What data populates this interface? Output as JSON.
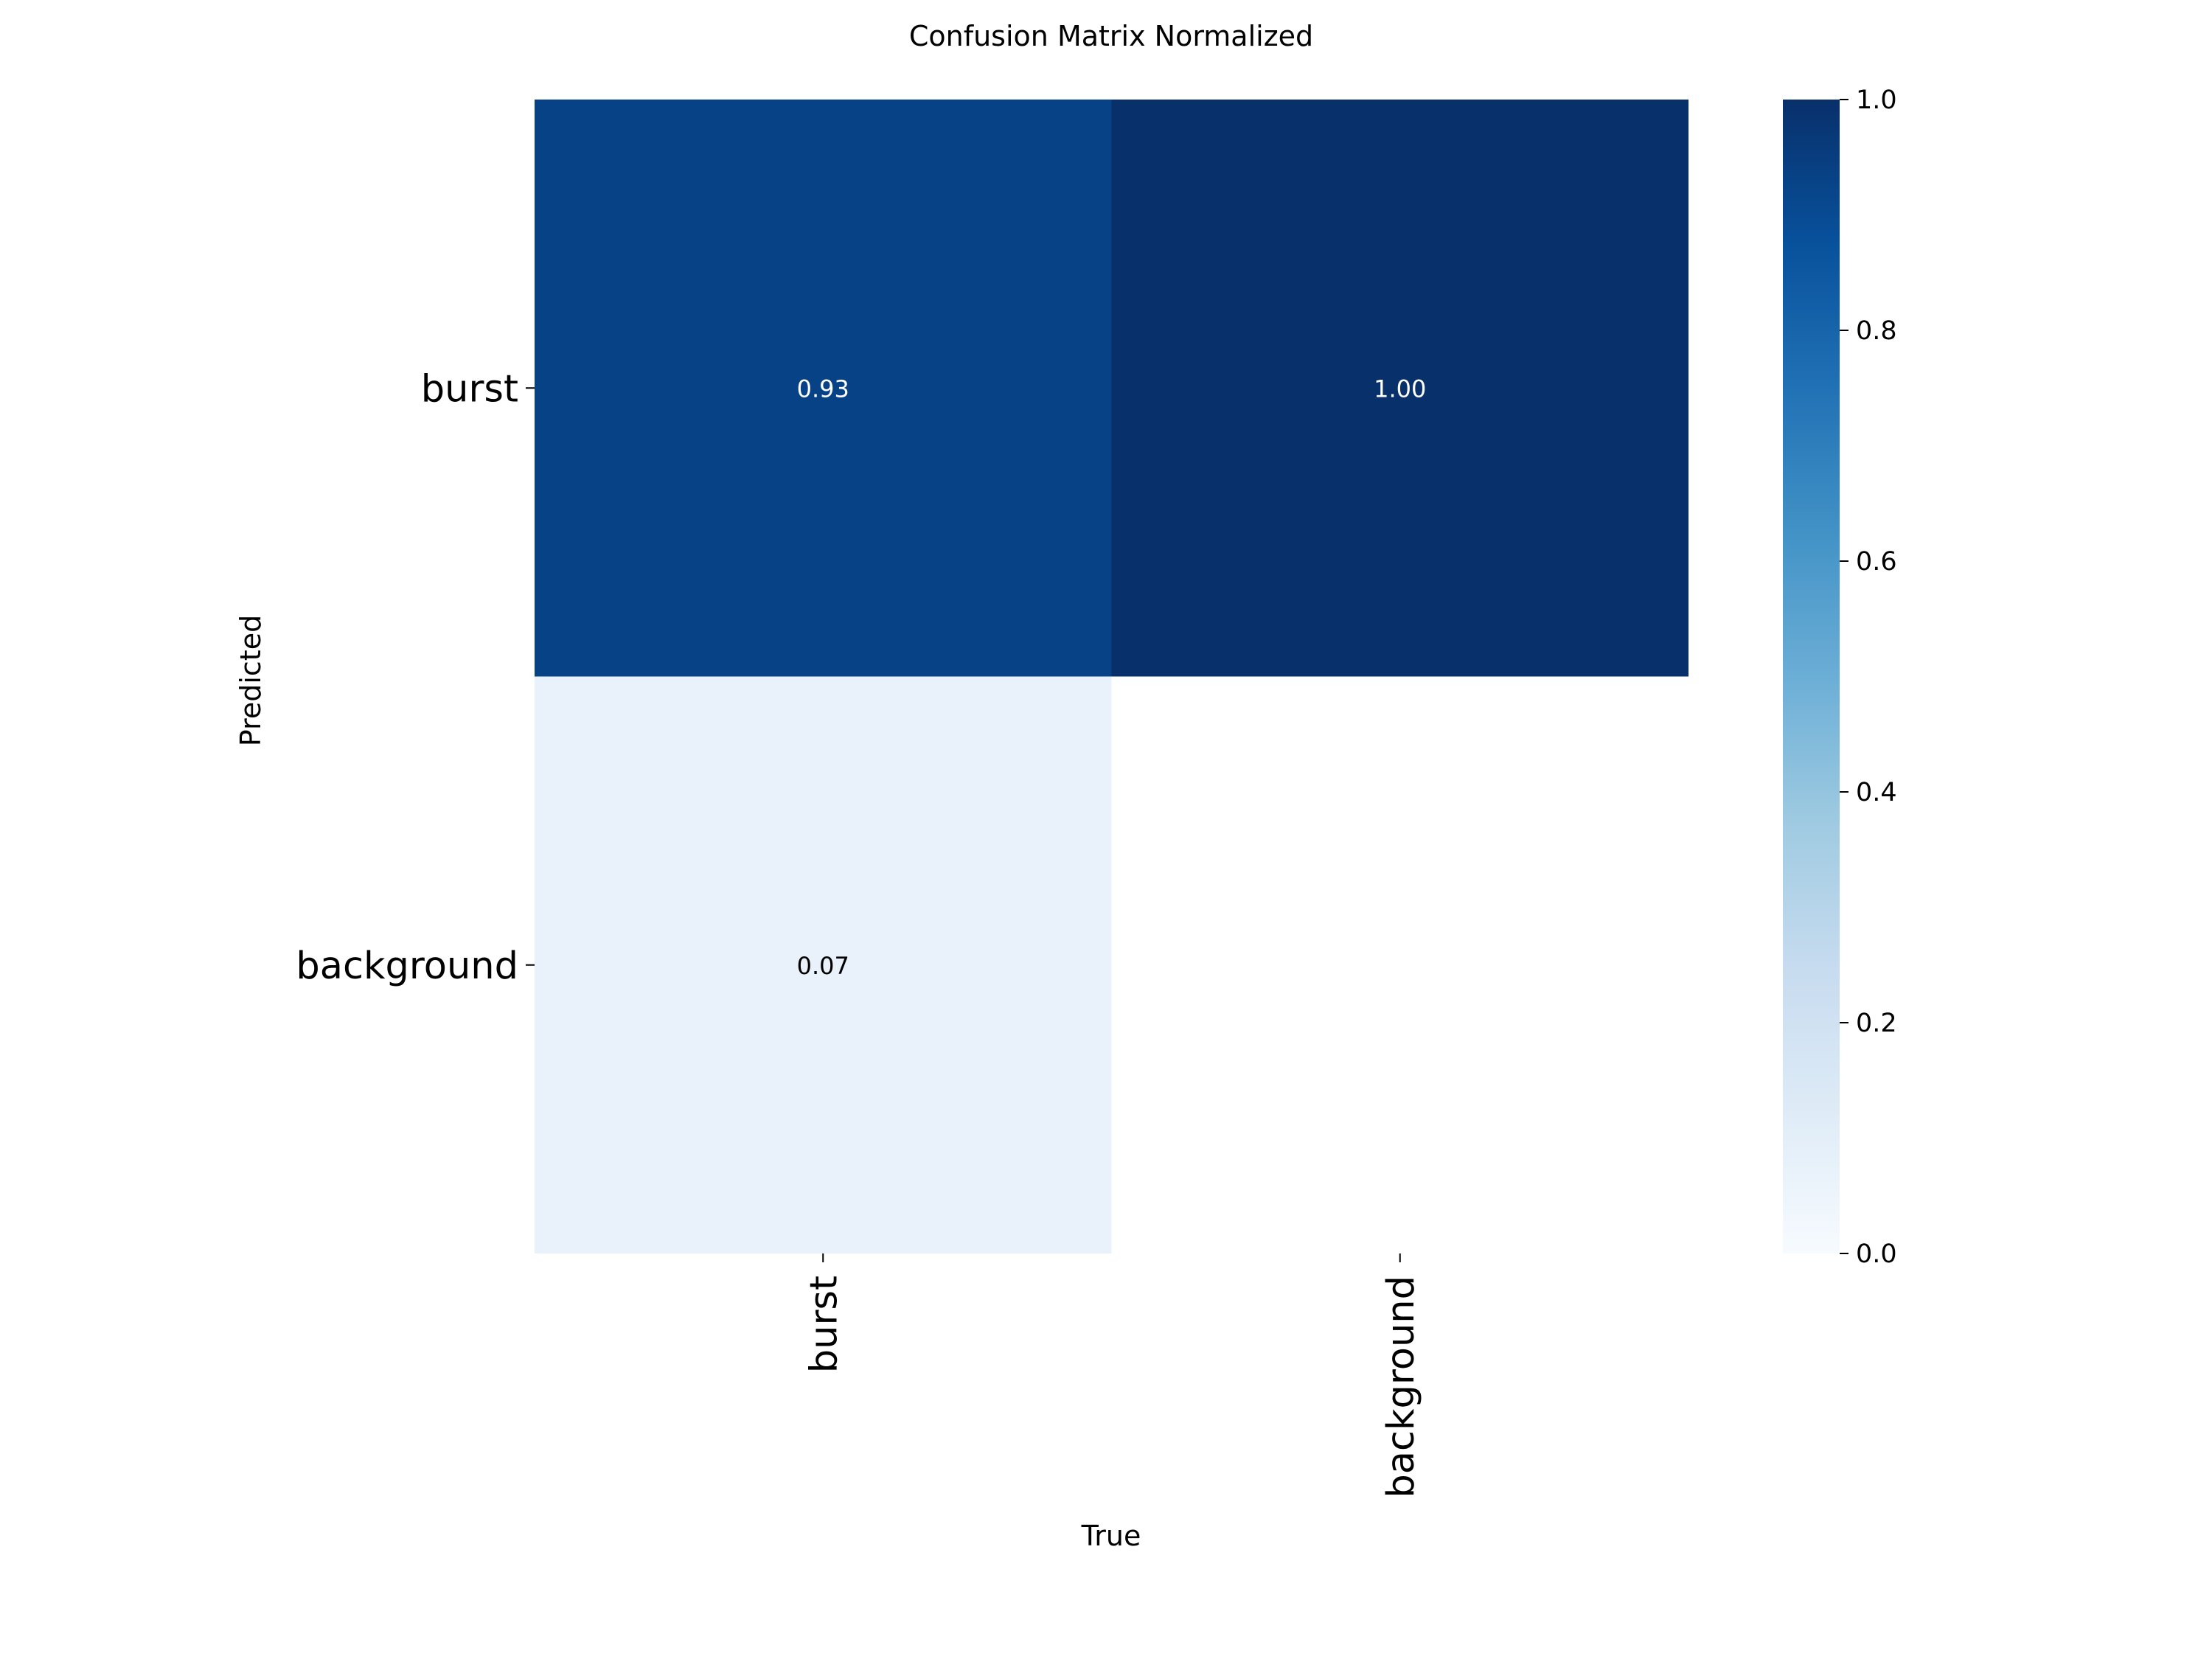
{
  "chart_data": {
    "type": "heatmap",
    "title": "Confusion Matrix Normalized",
    "xlabel": "True",
    "ylabel": "Predicted",
    "x_categories": [
      "burst",
      "background"
    ],
    "y_categories": [
      "burst",
      "background"
    ],
    "values": [
      [
        0.93,
        1.0
      ],
      [
        0.07,
        null
      ]
    ],
    "cell_labels": [
      [
        "0.93",
        "1.00"
      ],
      [
        "0.07",
        ""
      ]
    ],
    "colormap": "Blues",
    "colorbar": {
      "range": [
        0.0,
        1.0
      ],
      "ticks": [
        "0.0",
        "0.2",
        "0.4",
        "0.6",
        "0.8",
        "1.0"
      ]
    },
    "colors": {
      "low": "#f7fbff",
      "high": "#08306b",
      "label_on_dark": "#ffffff",
      "label_on_light": "#000000"
    },
    "grid": false
  }
}
